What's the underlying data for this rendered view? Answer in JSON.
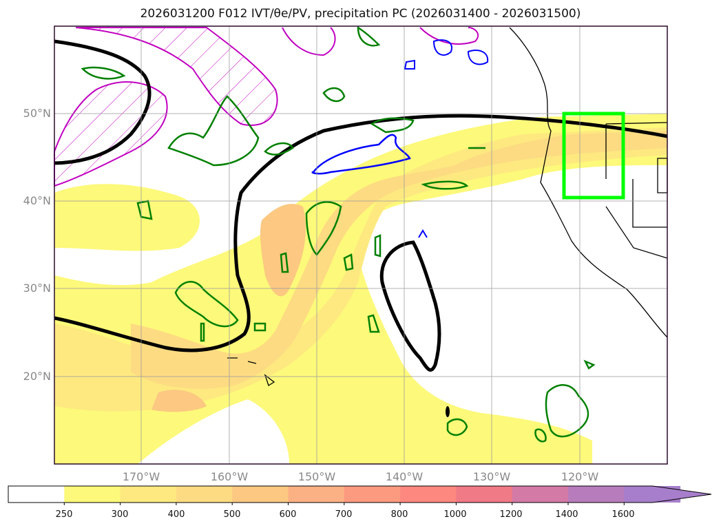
{
  "title": "2026031200 F012 IVT/θe/PV, precipitation PC (2026031400 - 2026031500)",
  "lat_labels": [
    "50°N",
    "40°N",
    "30°N",
    "20°N"
  ],
  "lon_labels": [
    "170°W",
    "160°W",
    "150°W",
    "140°W",
    "130°W",
    "120°W"
  ],
  "colorbar": {
    "ticks": [
      "250",
      "300",
      "400",
      "500",
      "600",
      "700",
      "800",
      "1000",
      "1200",
      "1400",
      "1600"
    ],
    "colors": [
      "#ffffff",
      "#fdf97a",
      "#fde980",
      "#fddb82",
      "#fcc882",
      "#fcb184",
      "#fc9a80",
      "#fc8880",
      "#f07a86",
      "#d47aa6",
      "#b77cbc",
      "#a77ecb"
    ]
  },
  "colors": {
    "theta_e_contour": "#000000",
    "pv_magenta": "#c000c0",
    "precip_green": "#008000",
    "precip_blue": "#0000ff",
    "box": "#00ff00"
  }
}
